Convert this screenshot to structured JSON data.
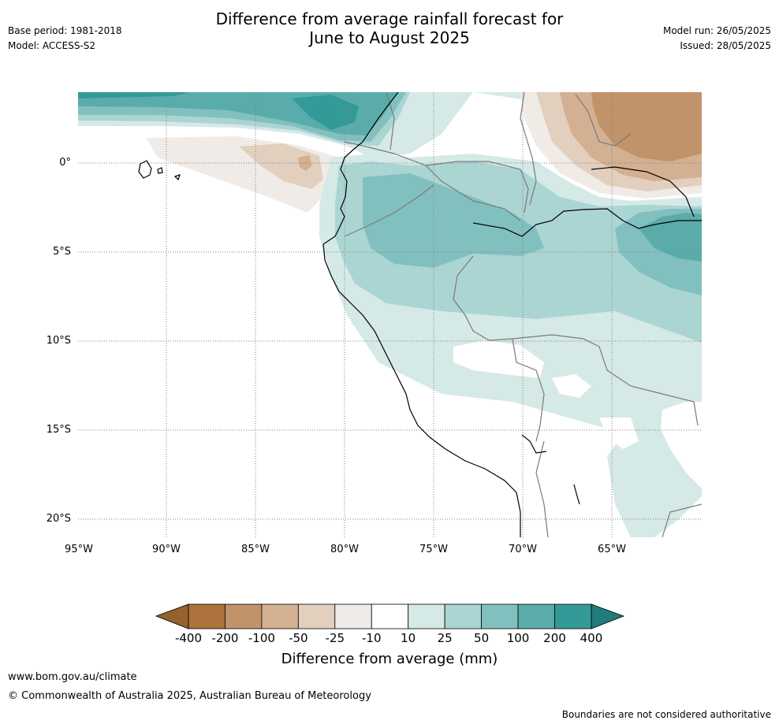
{
  "title": "Difference from average rainfall forecast for\nJune to August 2025",
  "meta": {
    "base_period": "Base period: 1981-2018",
    "model": "Model: ACCESS-S2",
    "model_run": "Model run: 26/05/2025",
    "issued": "Issued: 28/05/2025"
  },
  "lat_labels": [
    "0°",
    "5°S",
    "10°S",
    "15°S",
    "20°S"
  ],
  "lon_labels": [
    "95°W",
    "90°W",
    "85°W",
    "80°W",
    "75°W",
    "70°W",
    "65°W"
  ],
  "legend": {
    "title": "Difference from average (mm)",
    "tick_labels": [
      "-400",
      "-200",
      "-100",
      "-50",
      "-25",
      "-10",
      "10",
      "25",
      "50",
      "100",
      "200",
      "400"
    ],
    "colors": {
      "below_400": "#95622b",
      "n400_n200": "#ac733c",
      "n200_n100": "#c0936a",
      "n100_n50": "#d2b091",
      "n50_n25": "#e3cfbe",
      "n25_n10": "#f0ebe6",
      "n10_10": "#ffffff",
      "p10_25": "#d5e9e7",
      "p25_50": "#abd5d3",
      "p50_100": "#82c0bf",
      "p100_200": "#5aacab",
      "p200_400": "#339a98",
      "above_400": "#1f7c7a"
    }
  },
  "footer": {
    "url": "www.bom.gov.au/climate",
    "copyright": "© Commonwealth of Australia 2025, Australian Bureau of Meteorology",
    "disclaimer": "Boundaries are not considered authoritative"
  }
}
